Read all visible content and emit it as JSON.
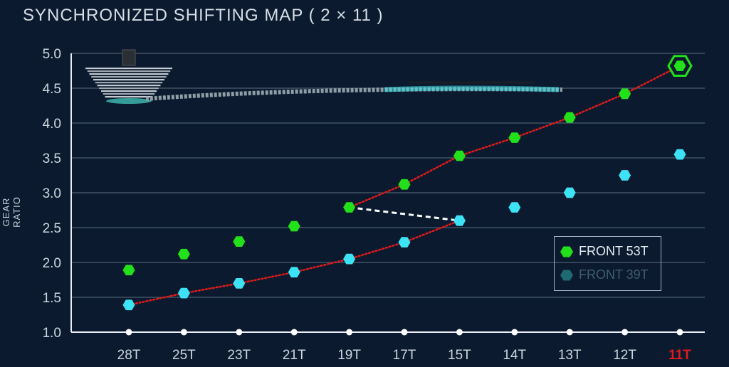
{
  "title": "SYNCHRONIZED SHIFTING MAP ( 2 × 11 )",
  "chart_data": {
    "type": "scatter",
    "title": "SYNCHRONIZED SHIFTING MAP ( 2 × 11 )",
    "xlabel": "",
    "ylabel": "GEAR RATIO",
    "categories": [
      "28T",
      "25T",
      "23T",
      "21T",
      "19T",
      "17T",
      "15T",
      "14T",
      "13T",
      "12T",
      "11T"
    ],
    "highlight_category": "11T",
    "ylim": [
      1.0,
      5.0
    ],
    "yticks": [
      "1.0",
      "1.5",
      "2.0",
      "2.5",
      "3.0",
      "3.5",
      "4.0",
      "4.5",
      "5.0"
    ],
    "grid": true,
    "legend_position": "bottom-right",
    "series": [
      {
        "name": "FRONT 53T",
        "color": "#22e01a",
        "values": [
          1.89,
          2.12,
          2.3,
          2.52,
          2.79,
          3.12,
          3.53,
          3.79,
          4.08,
          4.42,
          4.82
        ]
      },
      {
        "name": "FRONT 39T",
        "color": "#3de3f5",
        "values": [
          1.39,
          1.56,
          1.7,
          1.86,
          2.05,
          2.29,
          2.6,
          2.79,
          3.0,
          3.25,
          3.55
        ]
      }
    ],
    "shift_path": {
      "color": "#e01b1b",
      "segments": [
        {
          "series": "FRONT 39T",
          "from": "28T",
          "to": "15T"
        },
        {
          "series": "FRONT 53T",
          "from": "19T",
          "to": "11T"
        }
      ]
    },
    "front_shift": {
      "color": "#ffffff",
      "from": {
        "series": "FRONT 53T",
        "x": "19T"
      },
      "to": {
        "series": "FRONT 39T",
        "x": "15T"
      }
    }
  },
  "legend": {
    "items": [
      "FRONT 53T",
      "FRONT 39T"
    ]
  },
  "colors": {
    "background": "#0b1a2e",
    "grid": "#5b6d80",
    "axis": "#e9eef3",
    "highlight": "#e01b1b"
  },
  "decoration": {
    "image": "cassette-and-chain"
  }
}
